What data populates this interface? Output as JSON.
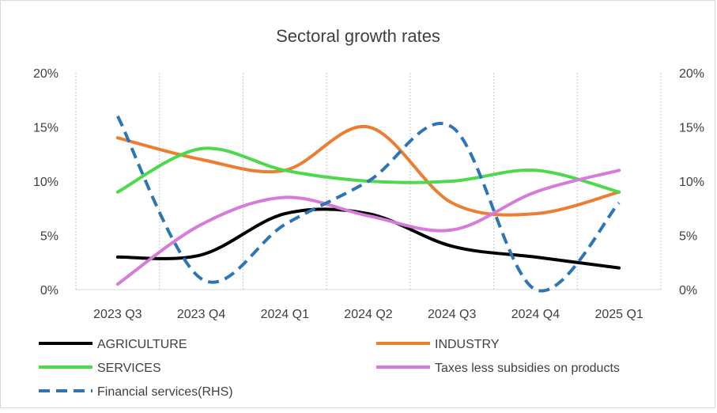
{
  "chart_data": {
    "type": "line",
    "title": "Sectoral growth rates",
    "categories": [
      "2023 Q3",
      "2023 Q4",
      "2024 Q1",
      "2024 Q2",
      "2024 Q3",
      "2024 Q4",
      "2025 Q1"
    ],
    "y_left": {
      "ylim": [
        0,
        20
      ],
      "ticks": [
        "0%",
        "5%",
        "10%",
        "15%",
        "20%"
      ]
    },
    "y_right": {
      "ylim": [
        0,
        20
      ],
      "ticks": [
        "0%",
        "5%",
        "10%",
        "15%",
        "20%"
      ]
    },
    "grid": "vertical dotted",
    "legend_position": "bottom",
    "series": [
      {
        "name": "AGRICULTURE",
        "color": "#000000",
        "dash": false,
        "axis": "left",
        "values": [
          3.0,
          3.2,
          7.0,
          7.0,
          4.0,
          3.0,
          2.0
        ]
      },
      {
        "name": "INDUSTRY",
        "color": "#ED7D31",
        "dash": false,
        "axis": "left",
        "values": [
          14.0,
          12.0,
          11.0,
          15.0,
          8.0,
          7.0,
          9.0
        ]
      },
      {
        "name": "SERVICES",
        "color": "#4CD94C",
        "dash": false,
        "axis": "left",
        "values": [
          9.0,
          13.0,
          11.0,
          10.0,
          10.0,
          11.0,
          9.0
        ]
      },
      {
        "name": "Taxes less subsidies on products",
        "color": "#D67BDA",
        "dash": false,
        "axis": "left",
        "values": [
          0.5,
          6.0,
          8.5,
          6.8,
          5.5,
          9.0,
          11.0
        ]
      },
      {
        "name": "Financial services(RHS)",
        "color": "#2E75B6",
        "dash": true,
        "axis": "right",
        "values": [
          16.0,
          1.0,
          6.0,
          10.0,
          15.0,
          0.0,
          8.0
        ]
      }
    ]
  }
}
